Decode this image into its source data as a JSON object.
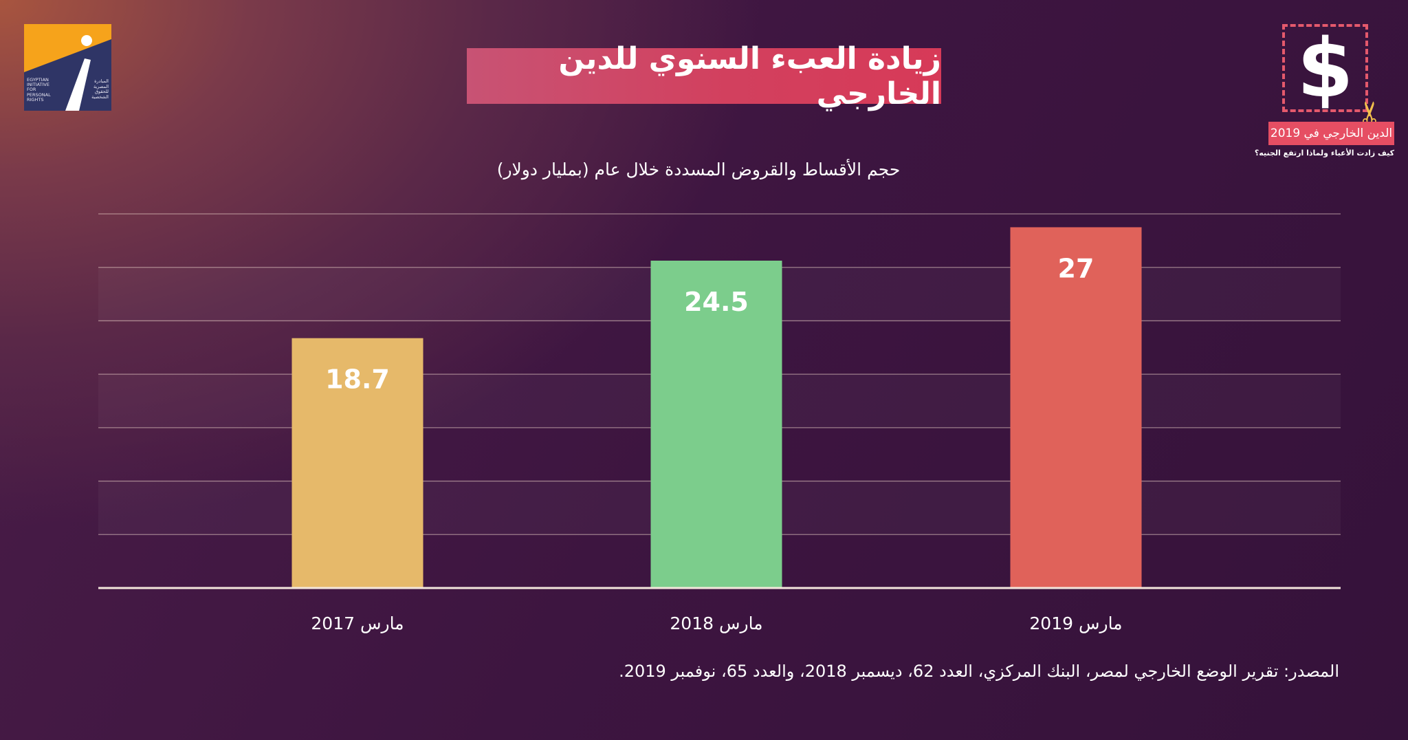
{
  "header": {
    "title": "زيادة العبء السنوي للدين الخارجي"
  },
  "logo": {
    "english_text": "EGYPTIAN\nINITIATIVE\nFOR\nPERSONAL\nRIGHTS",
    "arabic_text": "المبادرة\nالمصرية\nللحقوق\nالشخصية",
    "colors": {
      "background": "#f6a31b",
      "panel": "#2f3566"
    }
  },
  "badge": {
    "symbol": "$",
    "label": "الدين الخارجي في 2019",
    "subtitle": "كيف زادت الأعباء ولماذا ارتفع الجنيه؟",
    "icon": "scissors-icon"
  },
  "chart_data": {
    "type": "bar",
    "title": "حجم الأقساط والقروض المسددة خلال عام (بمليار دولار)",
    "categories": [
      "مارس 2017",
      "مارس 2018",
      "مارس 2019"
    ],
    "values": [
      18.7,
      24.5,
      27
    ],
    "value_labels": [
      "18.7",
      "24.5",
      "27"
    ],
    "colors": [
      "#e6b96a",
      "#7ccd8c",
      "#e0625a"
    ],
    "ylim": [
      0,
      28
    ],
    "grid": true,
    "y_tick_labels_shown": false,
    "xlabel": "",
    "ylabel": ""
  },
  "footer": {
    "source": "المصدر: تقرير الوضع الخارجي لمصر، البنك المركزي، العدد 62، ديسمبر 2018، والعدد 65، نوفمبر 2019."
  }
}
